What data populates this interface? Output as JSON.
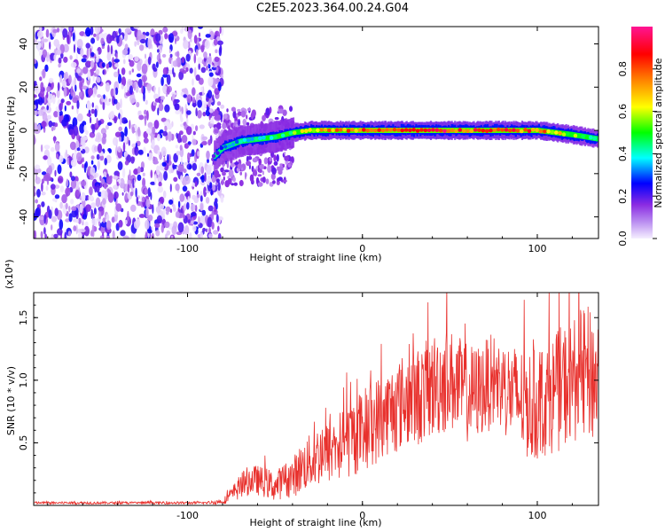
{
  "title": "C2E5.2023.364.00.24.G04",
  "chart_data": [
    {
      "type": "heatmap",
      "xlabel": "Height of straight line (km)",
      "ylabel": "Frequency (Hz)",
      "xlim": [
        -188,
        135
      ],
      "ylim": [
        -50,
        48
      ],
      "x_ticks": [
        -100,
        0,
        100
      ],
      "y_ticks": [
        -40,
        -20,
        0,
        20,
        40
      ],
      "colorbar": {
        "label": "Normalized spectral amplitude",
        "range": [
          0,
          1
        ],
        "ticks": [
          "0.0",
          "0.2",
          "0.4",
          "0.6",
          "0.8"
        ],
        "colors": [
          "#f0e6ff",
          "#8a2be2",
          "#0000ff",
          "#00ffff",
          "#00ff00",
          "#ffff00",
          "#ff8000",
          "#ff0000",
          "#ff1493"
        ]
      },
      "ridge": {
        "x": [
          -85,
          -80,
          -70,
          -60,
          -50,
          -40,
          -30,
          -20,
          -10,
          0,
          10,
          20,
          40,
          60,
          80,
          100,
          120,
          135
        ],
        "freq": [
          -12,
          -8,
          -5,
          -4,
          -3,
          -1,
          0,
          0,
          0,
          0,
          0,
          0,
          0,
          0,
          0,
          0,
          -2,
          -4
        ],
        "amplitude": [
          0.2,
          0.3,
          0.4,
          0.45,
          0.5,
          0.55,
          0.7,
          0.8,
          0.85,
          0.9,
          0.95,
          1.0,
          0.95,
          0.9,
          0.9,
          0.85,
          0.6,
          0.4
        ]
      },
      "noise_region_x": [
        -188,
        -80
      ]
    },
    {
      "type": "line",
      "xlabel": "Height of straight line (km)",
      "ylabel": "SNR (10 * v/v)",
      "scale_label": "(x10⁴)",
      "xlim": [
        -188,
        135
      ],
      "ylim": [
        0,
        1.7
      ],
      "x_ticks": [
        -100,
        0,
        100
      ],
      "y_ticks": [
        "0.5",
        "1.0",
        "1.5"
      ],
      "line_color": "#e8302c",
      "series": [
        {
          "x": [
            -188,
            -170,
            -150,
            -130,
            -110,
            -90,
            -80,
            -75,
            -70,
            -65,
            -60,
            -55,
            -50,
            -45,
            -40,
            -35,
            -30,
            -25,
            -20,
            -15,
            -10,
            -5,
            0,
            5,
            10,
            15,
            20,
            25,
            30,
            35,
            40,
            45,
            50,
            55,
            60,
            65,
            70,
            75,
            80,
            85,
            90,
            95,
            100,
            105,
            110,
            115,
            120,
            125,
            130,
            135
          ],
          "y": [
            0.02,
            0.02,
            0.02,
            0.02,
            0.02,
            0.02,
            0.03,
            0.08,
            0.15,
            0.2,
            0.2,
            0.18,
            0.15,
            0.2,
            0.22,
            0.3,
            0.35,
            0.4,
            0.42,
            0.45,
            0.5,
            0.55,
            0.6,
            0.65,
            0.7,
            0.75,
            0.8,
            0.85,
            0.85,
            0.9,
            0.95,
            1.0,
            1.0,
            0.95,
            0.9,
            0.9,
            0.95,
            1.0,
            0.95,
            0.9,
            0.85,
            0.8,
            0.8,
            0.85,
            0.9,
            0.95,
            1.0,
            1.05,
            1.05,
            1.0
          ],
          "spread": [
            0.01,
            0.01,
            0.01,
            0.01,
            0.01,
            0.01,
            0.02,
            0.06,
            0.1,
            0.12,
            0.12,
            0.12,
            0.12,
            0.14,
            0.16,
            0.2,
            0.22,
            0.25,
            0.25,
            0.28,
            0.3,
            0.32,
            0.33,
            0.35,
            0.35,
            0.35,
            0.38,
            0.38,
            0.4,
            0.4,
            0.42,
            0.45,
            0.42,
            0.4,
            0.4,
            0.38,
            0.38,
            0.38,
            0.38,
            0.4,
            0.42,
            0.45,
            0.45,
            0.45,
            0.48,
            0.5,
            0.5,
            0.52,
            0.55,
            0.55
          ]
        }
      ]
    }
  ]
}
